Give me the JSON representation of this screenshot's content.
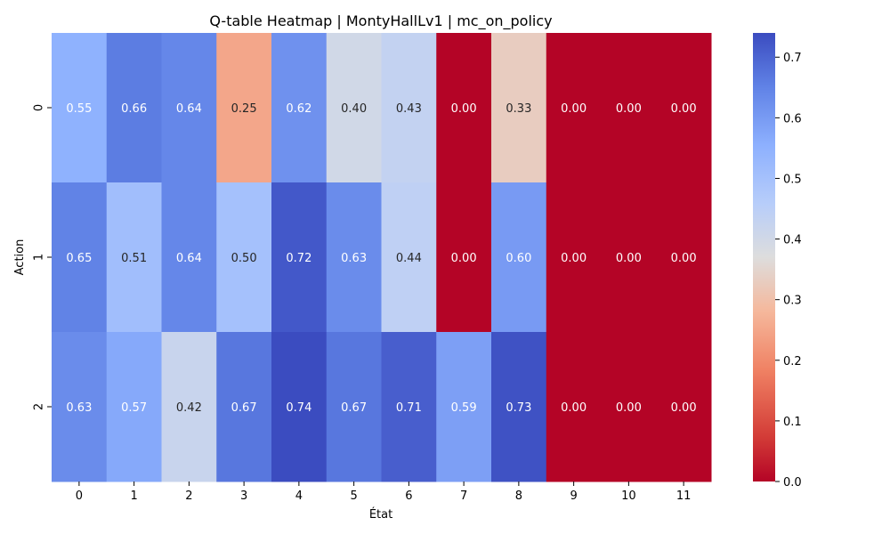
{
  "chart_data": {
    "type": "heatmap",
    "title": "Q-table Heatmap | MontyHallLv1 | mc_on_policy",
    "xlabel": "État",
    "ylabel": "Action",
    "x_categories": [
      "0",
      "1",
      "2",
      "3",
      "4",
      "5",
      "6",
      "7",
      "8",
      "9",
      "10",
      "11"
    ],
    "y_categories": [
      "0",
      "1",
      "2"
    ],
    "values": [
      [
        0.55,
        0.66,
        0.64,
        0.25,
        0.62,
        0.4,
        0.43,
        0.0,
        0.33,
        0.0,
        0.0,
        0.0
      ],
      [
        0.65,
        0.51,
        0.64,
        0.5,
        0.72,
        0.63,
        0.44,
        0.0,
        0.6,
        0.0,
        0.0,
        0.0
      ],
      [
        0.63,
        0.57,
        0.42,
        0.67,
        0.74,
        0.67,
        0.71,
        0.59,
        0.73,
        0.0,
        0.0,
        0.0
      ]
    ],
    "value_format": "2 decimals",
    "colormap": "coolwarm_r",
    "colorbar": {
      "range": [
        0.0,
        0.74
      ],
      "ticks": [
        0.0,
        0.1,
        0.2,
        0.3,
        0.4,
        0.5,
        0.6,
        0.7
      ],
      "tick_labels": [
        "0.0",
        "0.1",
        "0.2",
        "0.3",
        "0.4",
        "0.5",
        "0.6",
        "0.7"
      ],
      "placement": "right"
    },
    "grid": false
  }
}
